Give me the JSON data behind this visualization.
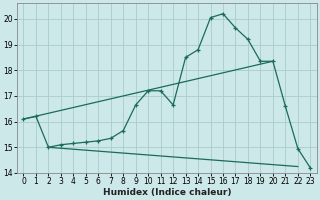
{
  "xlabel": "Humidex (Indice chaleur)",
  "bg_color": "#cce8e8",
  "line_color": "#1a6b5a",
  "grid_color": "#aacccc",
  "xlim": [
    -0.5,
    23.5
  ],
  "ylim": [
    14.0,
    20.6
  ],
  "xticks": [
    0,
    1,
    2,
    3,
    4,
    5,
    6,
    7,
    8,
    9,
    10,
    11,
    12,
    13,
    14,
    15,
    16,
    17,
    18,
    19,
    20,
    21,
    22,
    23
  ],
  "yticks": [
    14,
    15,
    16,
    17,
    18,
    19,
    20
  ],
  "line1_x": [
    0,
    1,
    2,
    3,
    4,
    5,
    6,
    7,
    8,
    9,
    10,
    11,
    12,
    13,
    14,
    15,
    16,
    17,
    18,
    19,
    20,
    21,
    22,
    23
  ],
  "line1_y": [
    16.1,
    16.2,
    15.0,
    15.1,
    15.15,
    15.2,
    15.25,
    15.35,
    15.65,
    16.65,
    17.2,
    17.2,
    16.65,
    18.5,
    18.8,
    20.05,
    20.2,
    19.65,
    19.2,
    18.35,
    18.35,
    16.6,
    14.95,
    14.2
  ],
  "line2_x": [
    0,
    20
  ],
  "line2_y": [
    16.1,
    18.35
  ],
  "line3_x": [
    2,
    22
  ],
  "line3_y": [
    15.0,
    14.25
  ]
}
